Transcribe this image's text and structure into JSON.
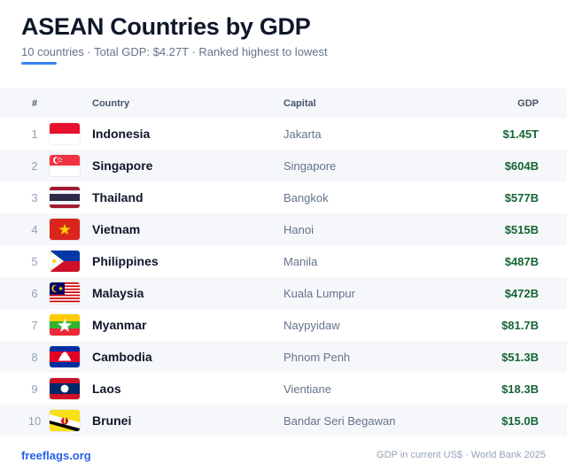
{
  "header": {
    "title": "ASEAN Countries by GDP",
    "subtitle": "10 countries · Total GDP: $4.27T · Ranked highest to lowest"
  },
  "table": {
    "columns": {
      "rank": "#",
      "country": "Country",
      "capital": "Capital",
      "gdp": "GDP"
    },
    "rows": [
      {
        "rank": "1",
        "flag": "indonesia-flag-icon",
        "country": "Indonesia",
        "capital": "Jakarta",
        "gdp": "$1.45T"
      },
      {
        "rank": "2",
        "flag": "singapore-flag-icon",
        "country": "Singapore",
        "capital": "Singapore",
        "gdp": "$604B"
      },
      {
        "rank": "3",
        "flag": "thailand-flag-icon",
        "country": "Thailand",
        "capital": "Bangkok",
        "gdp": "$577B"
      },
      {
        "rank": "4",
        "flag": "vietnam-flag-icon",
        "country": "Vietnam",
        "capital": "Hanoi",
        "gdp": "$515B"
      },
      {
        "rank": "5",
        "flag": "philippines-flag-icon",
        "country": "Philippines",
        "capital": "Manila",
        "gdp": "$487B"
      },
      {
        "rank": "6",
        "flag": "malaysia-flag-icon",
        "country": "Malaysia",
        "capital": "Kuala Lumpur",
        "gdp": "$472B"
      },
      {
        "rank": "7",
        "flag": "myanmar-flag-icon",
        "country": "Myanmar",
        "capital": "Naypyidaw",
        "gdp": "$81.7B"
      },
      {
        "rank": "8",
        "flag": "cambodia-flag-icon",
        "country": "Cambodia",
        "capital": "Phnom Penh",
        "gdp": "$51.3B"
      },
      {
        "rank": "9",
        "flag": "laos-flag-icon",
        "country": "Laos",
        "capital": "Vientiane",
        "gdp": "$18.3B"
      },
      {
        "rank": "10",
        "flag": "brunei-flag-icon",
        "country": "Brunei",
        "capital": "Bandar Seri Begawan",
        "gdp": "$15.0B"
      }
    ]
  },
  "footer": {
    "brand": "freeflags.org",
    "source": "GDP in current US$ · World Bank 2025"
  },
  "colors": {
    "accent": "#3b82f6",
    "gdp_text": "#166534",
    "brand_link": "#2563eb",
    "row_stripe": "#f5f7fa"
  }
}
